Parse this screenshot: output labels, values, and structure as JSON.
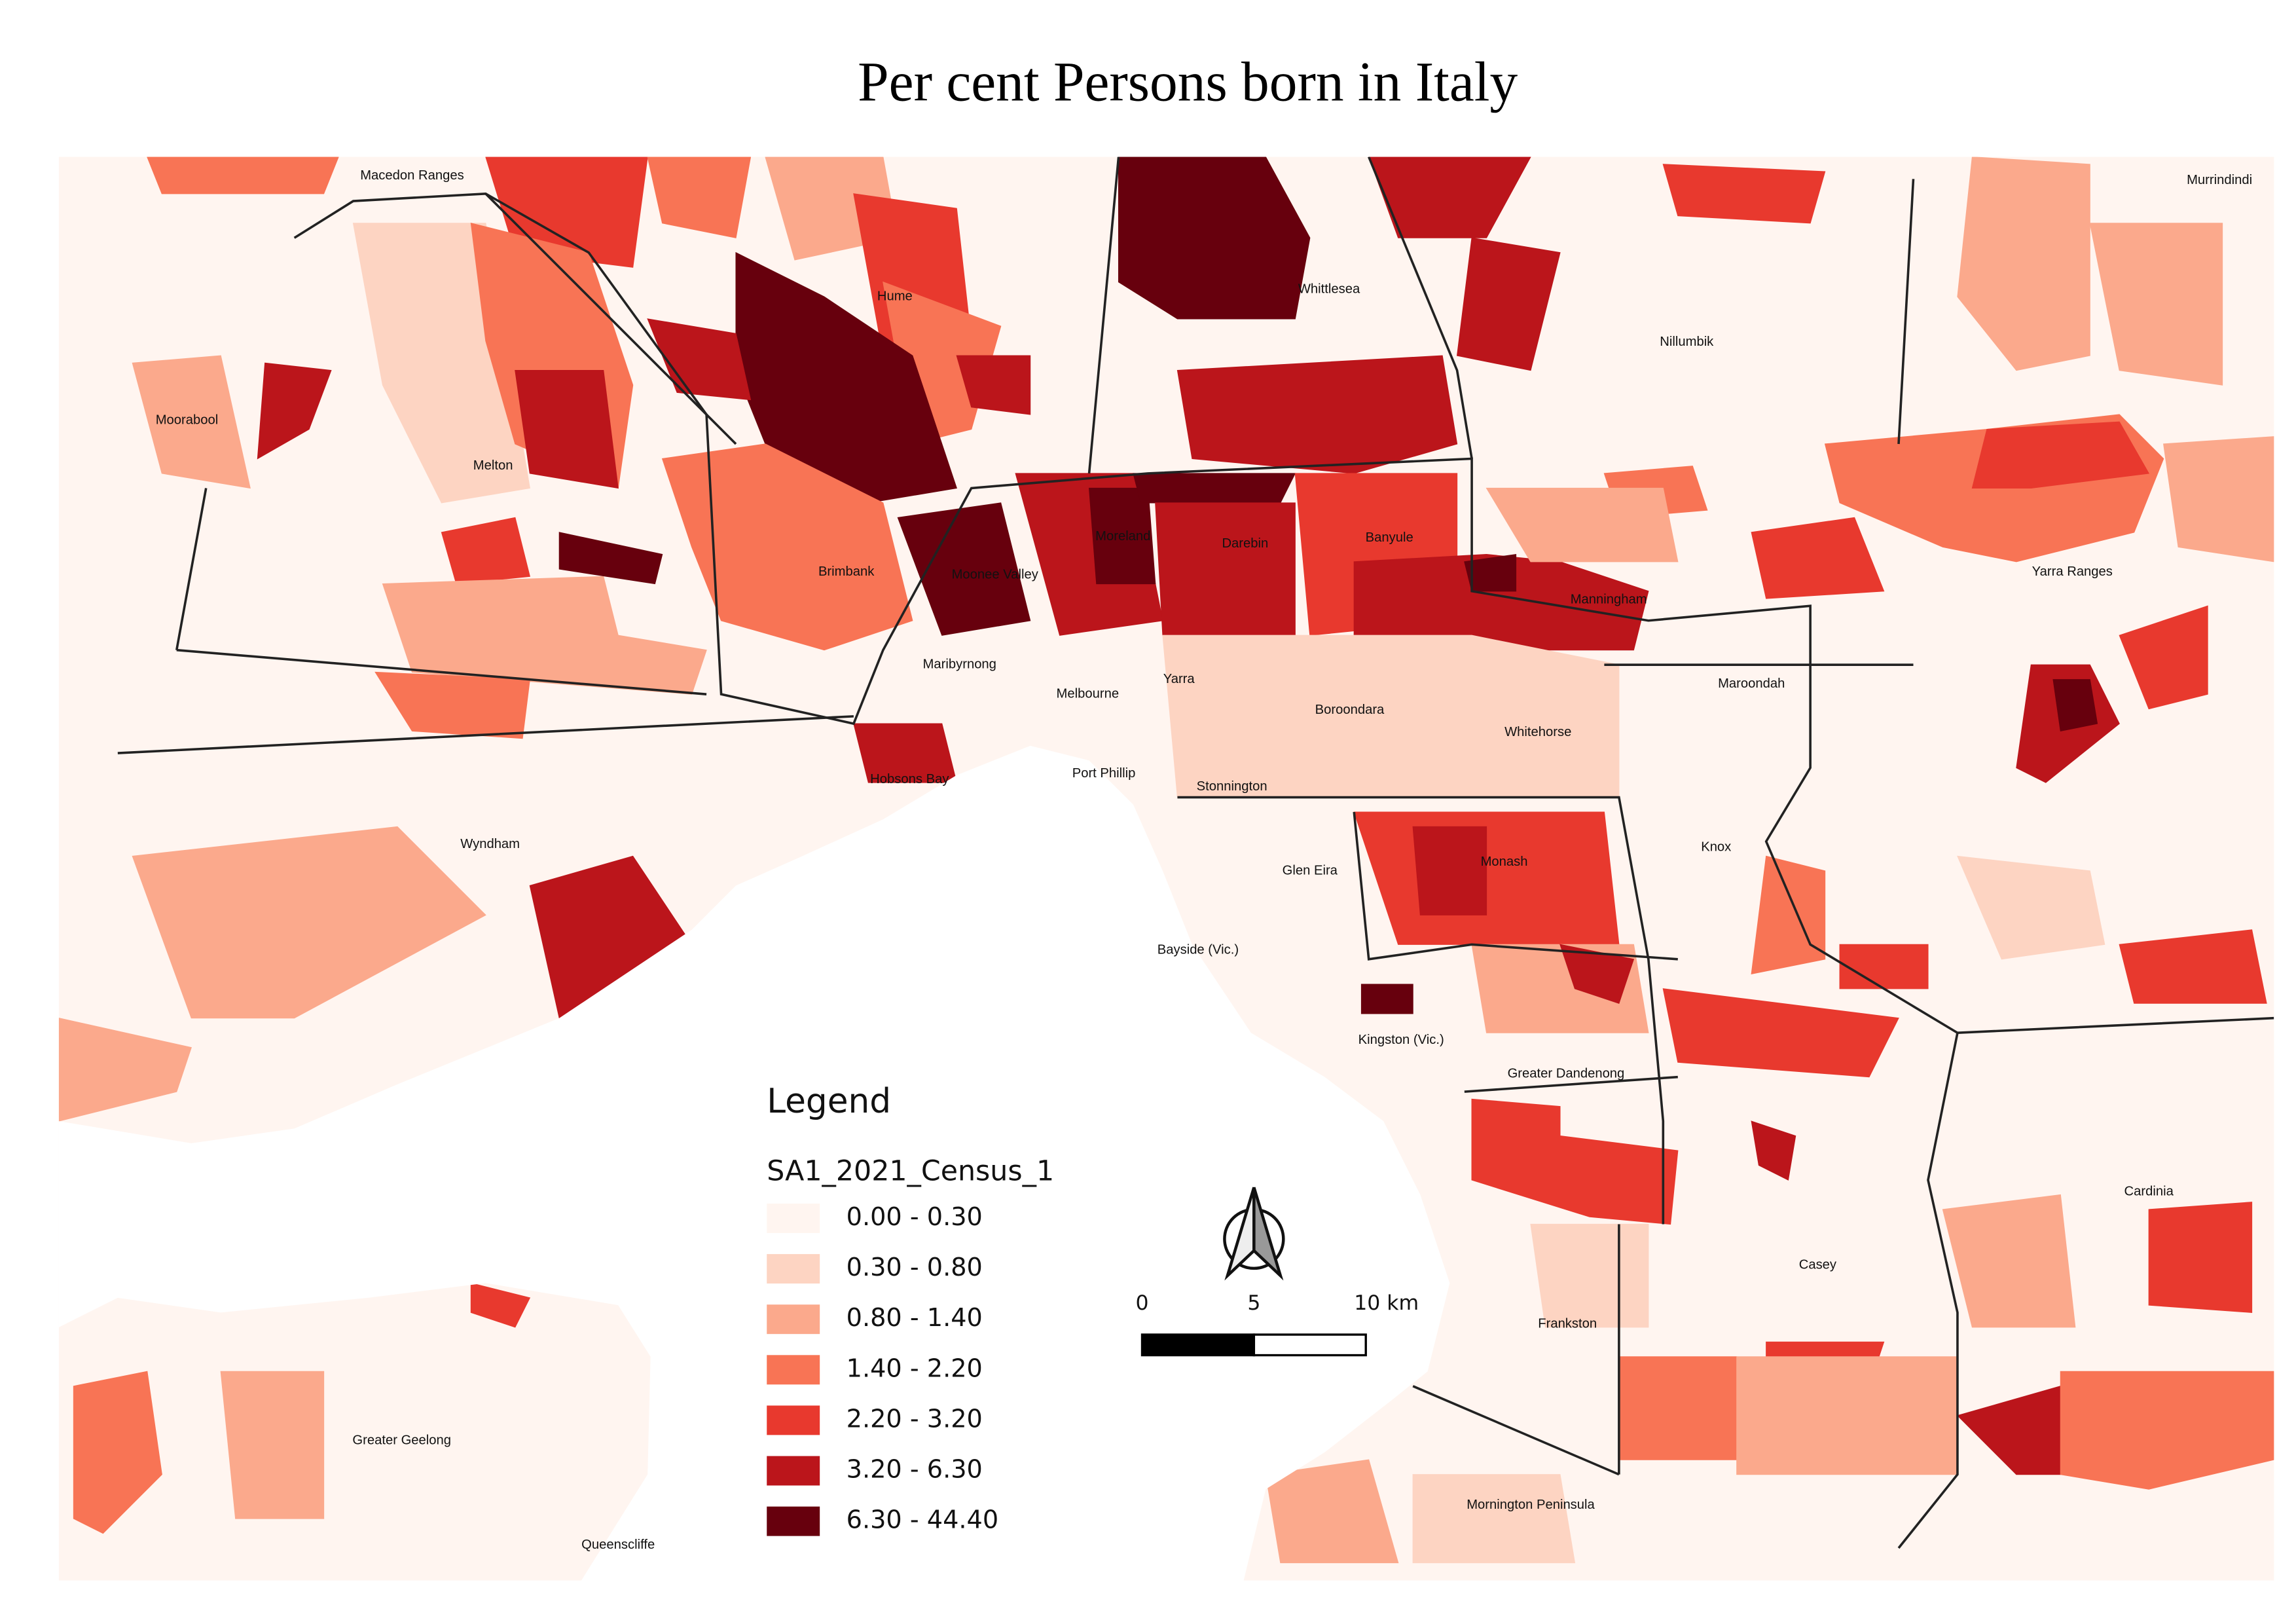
{
  "header": {
    "title": "Per cent Persons born in Italy"
  },
  "legend": {
    "heading": "Legend",
    "layer": "SA1_2021_Census_1",
    "classes": [
      {
        "label": "0.00 - 0.30",
        "color": "#fff5f0"
      },
      {
        "label": "0.30 - 0.80",
        "color": "#fdd4c2"
      },
      {
        "label": "0.80 - 1.40",
        "color": "#fba98c"
      },
      {
        "label": "1.40 - 2.20",
        "color": "#f87455"
      },
      {
        "label": "2.20 - 3.20",
        "color": "#e8392e"
      },
      {
        "label": "3.20 - 6.30",
        "color": "#bb151b"
      },
      {
        "label": "6.30 - 44.40",
        "color": "#67000d"
      }
    ]
  },
  "scale_bar": {
    "labels": [
      "0",
      "5",
      "10 km"
    ]
  },
  "places": [
    "Macedon Ranges",
    "Murrindindi",
    "Hume",
    "Whittlesea",
    "Nillumbik",
    "Moorabool",
    "Melton",
    "Moreland",
    "Darebin",
    "Banyule",
    "Brimbank",
    "Moonee Valley",
    "Yarra Ranges",
    "Manningham",
    "Maribyrnong",
    "Yarra",
    "Maroondah",
    "Melbourne",
    "Boroondara",
    "Whitehorse",
    "Hobsons Bay",
    "Port Phillip",
    "Stonnington",
    "Wyndham",
    "Knox",
    "Monash",
    "Glen Eira",
    "Bayside (Vic.)",
    "Kingston (Vic.)",
    "Greater Dandenong",
    "Cardinia",
    "Casey",
    "Frankston",
    "Greater Geelong",
    "Mornington Peninsula",
    "Queenscliffe"
  ]
}
